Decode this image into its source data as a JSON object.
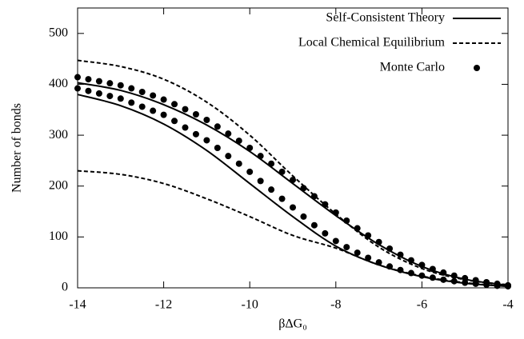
{
  "chart_data": {
    "type": "line",
    "xlabel": "βΔG₀",
    "ylabel": "Number of bonds",
    "xlim": [
      -14,
      -4
    ],
    "ylim": [
      0,
      550
    ],
    "xticks": [
      -14,
      -12,
      -10,
      -8,
      -6,
      -4
    ],
    "yticks": [
      0,
      100,
      200,
      300,
      400,
      500
    ],
    "legend": "upper right",
    "series": [
      {
        "name": "Self-Consistent Theory",
        "color": "#000000",
        "style": "solid",
        "x": [
          -14,
          -13,
          -12,
          -11,
          -10,
          -9,
          -8,
          -7,
          -6,
          -5,
          -4
        ],
        "values": [
          [
            403,
            388,
            360,
            320,
            268,
            205,
            142,
            85,
            42,
            17,
            5
          ],
          [
            380,
            358,
            322,
            270,
            205,
            140,
            82,
            45,
            22,
            9,
            3
          ]
        ]
      },
      {
        "name": "Local Chemical Equilibrium",
        "color": "#000000",
        "style": "dashed",
        "x": [
          -14,
          -13,
          -12,
          -11,
          -10,
          -9,
          -8,
          -7,
          -6,
          -5,
          -4
        ],
        "values": [
          [
            447,
            435,
            410,
            365,
            300,
            220,
            145,
            80,
            38,
            16,
            6
          ],
          [
            230,
            223,
            205,
            175,
            140,
            103,
            78,
            45,
            23,
            10,
            3
          ]
        ]
      },
      {
        "name": "Monte Carlo",
        "color": "#000000",
        "style": "points",
        "x": [
          -14,
          -13.75,
          -13.5,
          -13.25,
          -13,
          -12.75,
          -12.5,
          -12.25,
          -12,
          -11.75,
          -11.5,
          -11.25,
          -11,
          -10.75,
          -10.5,
          -10.25,
          -10,
          -9.75,
          -9.5,
          -9.25,
          -9,
          -8.75,
          -8.5,
          -8.25,
          -8,
          -7.75,
          -7.5,
          -7.25,
          -7,
          -6.75,
          -6.5,
          -6.25,
          -6,
          -5.75,
          -5.5,
          -5.25,
          -5,
          -4.75,
          -4.5,
          -4.25,
          -4
        ],
        "values": [
          [
            414,
            410,
            406,
            402,
            398,
            392,
            385,
            378,
            370,
            361,
            351,
            341,
            330,
            317,
            303,
            289,
            275,
            259,
            244,
            228,
            212,
            196,
            180,
            164,
            148,
            132,
            117,
            103,
            90,
            77,
            65,
            54,
            45,
            37,
            30,
            24,
            19,
            15,
            11,
            8,
            5
          ],
          [
            392,
            387,
            382,
            377,
            372,
            364,
            356,
            348,
            340,
            328,
            315,
            302,
            290,
            275,
            259,
            244,
            228,
            210,
            193,
            175,
            158,
            140,
            123,
            107,
            92,
            80,
            69,
            59,
            50,
            42,
            35,
            29,
            24,
            20,
            16,
            13,
            10,
            8,
            6,
            4,
            3
          ]
        ]
      }
    ]
  }
}
